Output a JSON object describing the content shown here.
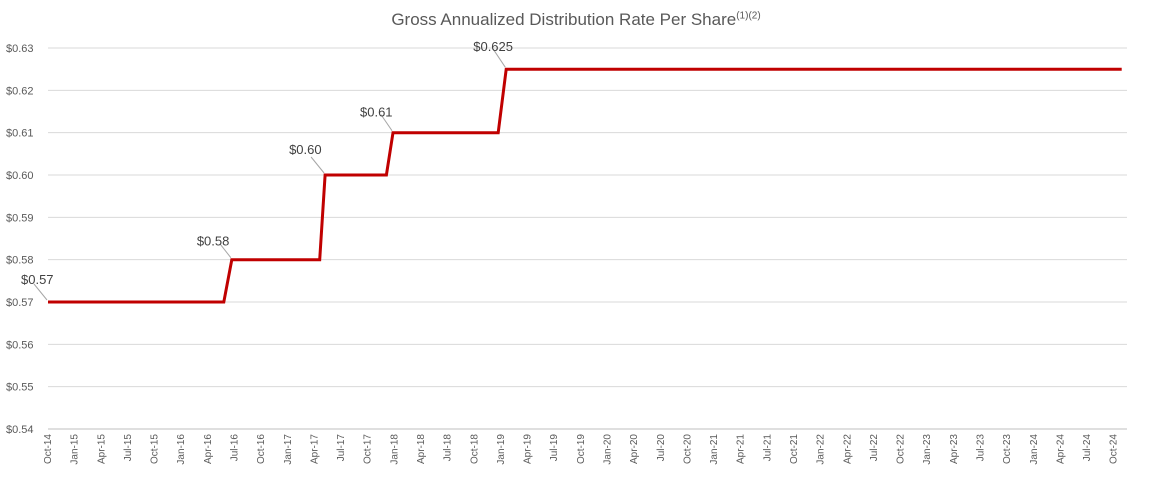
{
  "chart_data": {
    "type": "line",
    "title": "Gross Annualized Distribution Rate Per Share",
    "title_sup": "(1)(2)",
    "xlabel": "",
    "ylabel": "",
    "ylim": [
      0.54,
      0.63
    ],
    "y_ticks": [
      "$0.54",
      "$0.55",
      "$0.56",
      "$0.57",
      "$0.58",
      "$0.59",
      "$0.60",
      "$0.61",
      "$0.62",
      "$0.63"
    ],
    "y_tick_values": [
      0.54,
      0.55,
      0.56,
      0.57,
      0.58,
      0.59,
      0.6,
      0.61,
      0.62,
      0.63
    ],
    "categories": [
      "Oct-14",
      "Jan-15",
      "Apr-15",
      "Jul-15",
      "Oct-15",
      "Jan-16",
      "Apr-16",
      "Jul-16",
      "Oct-16",
      "Jan-17",
      "Apr-17",
      "Jul-17",
      "Oct-17",
      "Jan-18",
      "Apr-18",
      "Jul-18",
      "Oct-18",
      "Jan-19",
      "Apr-19",
      "Jul-19",
      "Oct-19",
      "Jan-20",
      "Apr-20",
      "Jul-20",
      "Oct-20",
      "Jan-21",
      "Apr-21",
      "Jul-21",
      "Oct-21",
      "Jan-22",
      "Apr-22",
      "Jul-22",
      "Oct-22",
      "Jan-23",
      "Apr-23",
      "Jul-23",
      "Oct-23",
      "Jan-24",
      "Apr-24",
      "Jul-24",
      "Oct-24"
    ],
    "grid": true,
    "series": [
      {
        "name": "Gross Annualized Distribution Rate Per Share",
        "color": "#c00000",
        "points": [
          {
            "x": 0,
            "y": 0.57
          },
          {
            "x": 6.6,
            "y": 0.57
          },
          {
            "x": 6.9,
            "y": 0.58
          },
          {
            "x": 10.2,
            "y": 0.58
          },
          {
            "x": 10.4,
            "y": 0.6
          },
          {
            "x": 12.7,
            "y": 0.6
          },
          {
            "x": 12.95,
            "y": 0.61
          },
          {
            "x": 16.9,
            "y": 0.61
          },
          {
            "x": 17.2,
            "y": 0.625
          },
          {
            "x": 40.3,
            "y": 0.625
          }
        ]
      }
    ],
    "annotations": [
      {
        "text": "$0.57",
        "x": 0,
        "y": 0.57
      },
      {
        "text": "$0.58",
        "x": 6.9,
        "y": 0.58
      },
      {
        "text": "$0.60",
        "x": 10.4,
        "y": 0.6
      },
      {
        "text": "$0.61",
        "x": 12.95,
        "y": 0.61
      },
      {
        "text": "$0.625",
        "x": 17.2,
        "y": 0.625
      }
    ]
  }
}
